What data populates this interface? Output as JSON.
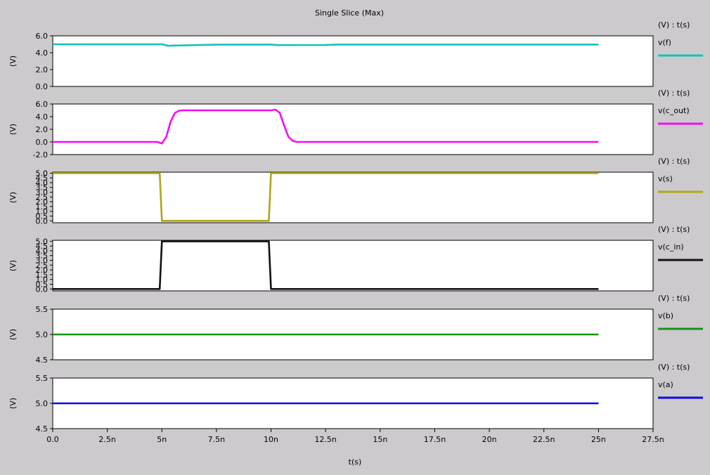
{
  "title": "Single Slice (Max)",
  "xaxis": {
    "label": "t(s)",
    "range": [
      0,
      27.5
    ],
    "ticks": [
      0,
      2.5,
      5,
      7.5,
      10,
      12.5,
      15,
      17.5,
      20,
      22.5,
      25,
      27.5
    ],
    "tick_labels": [
      "0.0",
      "2.5n",
      "5n",
      "7.5n",
      "10n",
      "12.5n",
      "15n",
      "17.5n",
      "20n",
      "22.5n",
      "25n",
      "27.5n"
    ]
  },
  "chart_data": [
    {
      "type": "line",
      "ylabel": "(V)",
      "header": "(V) : t(s)",
      "legend": "v(f)",
      "color": "#17bfbf",
      "ylim": [
        0,
        6
      ],
      "yticks": [
        0,
        2,
        4,
        6
      ],
      "ytick_labels": [
        "0.0",
        "2.0",
        "4.0",
        "6.0"
      ],
      "x": [
        0,
        5,
        5.3,
        5.5,
        7.5,
        10,
        10.3,
        12.5,
        13,
        25
      ],
      "y": [
        5,
        5,
        4.82,
        4.85,
        4.95,
        4.97,
        4.9,
        4.92,
        4.97,
        4.97
      ]
    },
    {
      "type": "line",
      "ylabel": "(V)",
      "header": "(V) : t(s)",
      "legend": "v(c_out)",
      "color": "#f20cf2",
      "ylim": [
        -2,
        6
      ],
      "yticks": [
        -2,
        0,
        2,
        4,
        6
      ],
      "ytick_labels": [
        "-2.0",
        "0.0",
        "2.0",
        "4.0",
        "6.0"
      ],
      "x": [
        0,
        4.8,
        5.0,
        5.2,
        5.4,
        5.6,
        5.8,
        6.0,
        10.0,
        10.2,
        10.4,
        10.6,
        10.8,
        11.0,
        11.2,
        25
      ],
      "y": [
        0,
        0,
        -0.25,
        0.8,
        3.2,
        4.6,
        4.95,
        5,
        5,
        5.1,
        4.6,
        2.6,
        0.8,
        0.15,
        0,
        0
      ]
    },
    {
      "type": "line",
      "ylabel": "(V)",
      "header": "(V) : t(s)",
      "legend": "v(s)",
      "color": "#b0a616",
      "ylim": [
        -0.2,
        5.1
      ],
      "yticks": [
        0,
        0.5,
        1,
        1.5,
        2,
        2.5,
        3,
        3.5,
        4,
        4.5,
        5
      ],
      "ytick_labels": [
        "0.0",
        "0.5",
        "1.0",
        "1.5",
        "2.0",
        "2.5",
        "3.0",
        "3.5",
        "4.0",
        "4.5",
        "5.0"
      ],
      "x": [
        0,
        4.9,
        5.0,
        9.9,
        10.0,
        25
      ],
      "y": [
        5,
        5,
        0,
        0,
        5,
        5
      ]
    },
    {
      "type": "line",
      "ylabel": "(V)",
      "header": "(V) : t(s)",
      "legend": "v(c_in)",
      "color": "#111111",
      "ylim": [
        -0.2,
        5.1
      ],
      "yticks": [
        0,
        0.5,
        1,
        1.5,
        2,
        2.5,
        3,
        3.5,
        4,
        4.5,
        5
      ],
      "ytick_labels": [
        "0.0",
        "0.5",
        "1.0",
        "1.5",
        "2.0",
        "2.5",
        "3.0",
        "3.5",
        "4.0",
        "4.5",
        "5.0"
      ],
      "x": [
        0,
        4.9,
        5.0,
        9.9,
        10.0,
        25
      ],
      "y": [
        0,
        0,
        5,
        5,
        0,
        0
      ]
    },
    {
      "type": "line",
      "ylabel": "(V)",
      "header": "(V) : t(s)",
      "legend": "v(b)",
      "color": "#149414",
      "ylim": [
        4.5,
        5.5
      ],
      "yticks": [
        4.5,
        5,
        5.5
      ],
      "ytick_labels": [
        "4.5",
        "5.0",
        "5.5"
      ],
      "x": [
        0,
        25
      ],
      "y": [
        5,
        5
      ]
    },
    {
      "type": "line",
      "ylabel": "(V)",
      "header": "(V) : t(s)",
      "legend": "v(a)",
      "color": "#0a0aea",
      "ylim": [
        4.5,
        5.5
      ],
      "yticks": [
        4.5,
        5,
        5.5
      ],
      "ytick_labels": [
        "4.5",
        "5.0",
        "5.5"
      ],
      "x": [
        0,
        25
      ],
      "y": [
        5,
        5
      ]
    }
  ]
}
